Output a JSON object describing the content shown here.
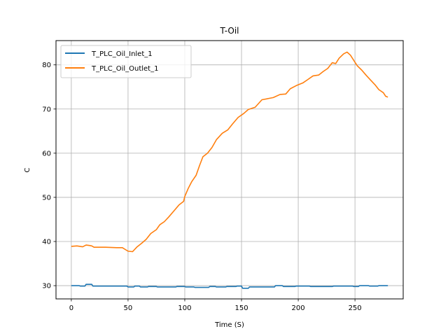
{
  "chart_data": {
    "type": "line",
    "title": "T-Oil",
    "xlabel": "Time (S)",
    "ylabel": "C",
    "xlim": [
      -13.5,
      292.5
    ],
    "ylim": [
      27,
      85.5
    ],
    "xticks": [
      0,
      50,
      100,
      150,
      200,
      250
    ],
    "yticks": [
      30,
      40,
      50,
      60,
      70,
      80
    ],
    "grid": true,
    "legend": "top-left",
    "series": [
      {
        "name": "T_PLC_Oil_Inlet_1",
        "color": "#1f77b4",
        "points": [
          [
            0,
            30.0
          ],
          [
            7,
            30.0
          ],
          [
            8,
            29.9
          ],
          [
            12,
            29.9
          ],
          [
            13,
            30.3
          ],
          [
            18,
            30.3
          ],
          [
            19,
            29.9
          ],
          [
            30,
            29.9
          ],
          [
            49,
            29.9
          ],
          [
            50,
            29.7
          ],
          [
            55,
            29.7
          ],
          [
            56,
            29.9
          ],
          [
            60,
            29.9
          ],
          [
            61,
            29.7
          ],
          [
            67,
            29.7
          ],
          [
            68,
            29.8
          ],
          [
            75,
            29.8
          ],
          [
            76,
            29.7
          ],
          [
            92,
            29.7
          ],
          [
            93,
            29.8
          ],
          [
            100,
            29.8
          ],
          [
            101,
            29.7
          ],
          [
            108,
            29.7
          ],
          [
            109,
            29.6
          ],
          [
            121,
            29.6
          ],
          [
            122,
            29.8
          ],
          [
            127,
            29.8
          ],
          [
            128,
            29.7
          ],
          [
            136,
            29.7
          ],
          [
            137,
            29.8
          ],
          [
            145,
            29.8
          ],
          [
            146,
            29.9
          ],
          [
            150,
            29.9
          ],
          [
            151,
            29.4
          ],
          [
            156,
            29.4
          ],
          [
            157,
            29.7
          ],
          [
            179,
            29.7
          ],
          [
            180,
            30.0
          ],
          [
            186,
            30.0
          ],
          [
            187,
            29.8
          ],
          [
            197,
            29.8
          ],
          [
            198,
            29.9
          ],
          [
            210,
            29.9
          ],
          [
            211,
            29.8
          ],
          [
            230,
            29.8
          ],
          [
            231,
            29.9
          ],
          [
            248,
            29.9
          ],
          [
            249,
            29.8
          ],
          [
            253,
            29.8
          ],
          [
            254,
            30.0
          ],
          [
            262,
            30.0
          ],
          [
            263,
            29.9
          ],
          [
            270,
            29.9
          ],
          [
            271,
            30.0
          ],
          [
            279,
            30.0
          ]
        ]
      },
      {
        "name": "T_PLC_Oil_Outlet_1",
        "color": "#ff7f0e",
        "points": [
          [
            0,
            38.9
          ],
          [
            5,
            39.0
          ],
          [
            10,
            38.8
          ],
          [
            13,
            39.2
          ],
          [
            16,
            39.1
          ],
          [
            18,
            39.0
          ],
          [
            20,
            38.7
          ],
          [
            30,
            38.7
          ],
          [
            40,
            38.6
          ],
          [
            45,
            38.6
          ],
          [
            50,
            37.8
          ],
          [
            54,
            37.7
          ],
          [
            58,
            38.8
          ],
          [
            62,
            39.6
          ],
          [
            66,
            40.5
          ],
          [
            70,
            41.8
          ],
          [
            75,
            42.7
          ],
          [
            78,
            43.8
          ],
          [
            82,
            44.5
          ],
          [
            86,
            45.6
          ],
          [
            90,
            46.8
          ],
          [
            95,
            48.3
          ],
          [
            99,
            49.1
          ],
          [
            100,
            50.2
          ],
          [
            103,
            52.0
          ],
          [
            106,
            53.5
          ],
          [
            110,
            55.0
          ],
          [
            113,
            57.2
          ],
          [
            116,
            59.2
          ],
          [
            120,
            60.0
          ],
          [
            124,
            61.3
          ],
          [
            128,
            63.1
          ],
          [
            133,
            64.5
          ],
          [
            138,
            65.3
          ],
          [
            142,
            66.6
          ],
          [
            147,
            68.1
          ],
          [
            152,
            69.0
          ],
          [
            156,
            69.9
          ],
          [
            162,
            70.4
          ],
          [
            168,
            72.1
          ],
          [
            174,
            72.4
          ],
          [
            178,
            72.6
          ],
          [
            184,
            73.3
          ],
          [
            189,
            73.4
          ],
          [
            193,
            74.6
          ],
          [
            199,
            75.4
          ],
          [
            204,
            75.9
          ],
          [
            208,
            76.6
          ],
          [
            213,
            77.5
          ],
          [
            218,
            77.7
          ],
          [
            222,
            78.5
          ],
          [
            226,
            79.2
          ],
          [
            230,
            80.5
          ],
          [
            233,
            80.3
          ],
          [
            236,
            81.5
          ],
          [
            240,
            82.5
          ],
          [
            243,
            82.9
          ],
          [
            246,
            82.2
          ],
          [
            249,
            81.0
          ],
          [
            252,
            79.8
          ],
          [
            256,
            78.8
          ],
          [
            260,
            77.6
          ],
          [
            264,
            76.5
          ],
          [
            268,
            75.4
          ],
          [
            271,
            74.4
          ],
          [
            275,
            73.7
          ],
          [
            277,
            72.9
          ],
          [
            279,
            72.7
          ]
        ]
      }
    ]
  }
}
